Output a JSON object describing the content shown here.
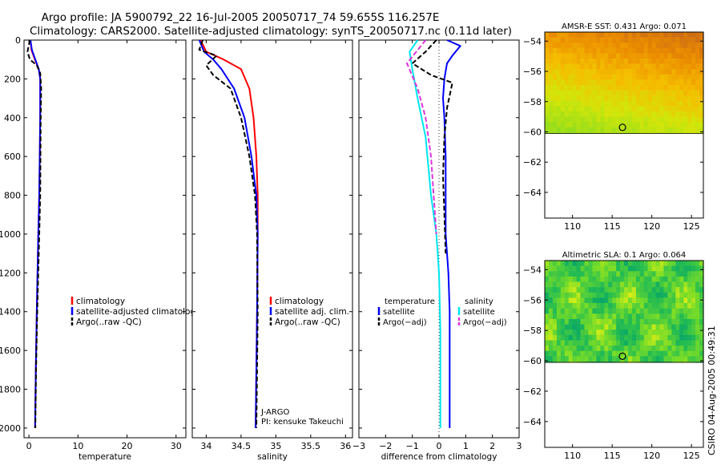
{
  "title": {
    "line1": "Argo profile: JA 5900792_22 16-Jul-2005 20050717_74 59.655S 116.257E",
    "line2": "Climatology: CARS2000. Satellite-adjusted climatology: synTS_20050717.nc (0.11d later)"
  },
  "side_credit": "CSIRO 04-Aug-2005 00:49:31",
  "colors": {
    "climatology": "#ff0000",
    "satellite": "#0000ff",
    "argo": "#000000",
    "salinity_satellite": "#00e5ee",
    "salinity_argo": "#dd33dd"
  },
  "chart_data": [
    {
      "type": "line",
      "name": "temperature-panel",
      "xlabel": "temperature",
      "ylabel": "",
      "xlim": [
        -1,
        32
      ],
      "ylim": [
        0,
        2050
      ],
      "y_reversed": true,
      "xticks": [
        0,
        10,
        20,
        30
      ],
      "xtick_labels": [
        "0",
        "10",
        "20",
        "30"
      ],
      "yticks": [
        0,
        200,
        400,
        600,
        800,
        1000,
        1200,
        1400,
        1600,
        1800,
        2000
      ],
      "ytick_labels": [
        "0",
        "200",
        "400",
        "600",
        "800",
        "1000",
        "1200",
        "1400",
        "1600",
        "1800",
        "2000"
      ],
      "legend": [
        "climatology",
        "satellite-adjusted climatology",
        "Argo(..raw -QC)"
      ],
      "legend_position": "middle-right",
      "series": [
        {
          "name": "climatology",
          "color": "#ff0000",
          "style": "solid",
          "x": [
            0.3,
            0.5,
            1.2,
            2.0,
            2.3,
            2.3,
            2.1,
            1.9,
            1.6,
            1.4,
            1.25
          ],
          "y": [
            0,
            50,
            100,
            150,
            200,
            400,
            800,
            1000,
            1400,
            1700,
            2000
          ]
        },
        {
          "name": "satellite",
          "color": "#0000ff",
          "style": "solid",
          "x": [
            0.3,
            0.6,
            1.3,
            2.0,
            2.3,
            2.3,
            2.1,
            1.9,
            1.6,
            1.4,
            1.25
          ],
          "y": [
            0,
            50,
            100,
            150,
            200,
            400,
            800,
            1000,
            1400,
            1700,
            2000
          ]
        },
        {
          "name": "argo",
          "color": "#000000",
          "style": "dash",
          "x": [
            0.2,
            -0.3,
            0.2,
            1.6,
            2.3,
            2.5,
            2.4,
            2.3,
            2.1,
            1.7,
            1.45,
            1.3
          ],
          "y": [
            0,
            60,
            100,
            130,
            170,
            250,
            400,
            800,
            1000,
            1400,
            1700,
            2000
          ]
        }
      ]
    },
    {
      "type": "line",
      "name": "salinity-panel",
      "xlabel": "salinity",
      "xlim": [
        33.8,
        36.1
      ],
      "ylim": [
        0,
        2050
      ],
      "y_reversed": true,
      "xticks": [
        34,
        34.5,
        35,
        35.5,
        36
      ],
      "xtick_labels": [
        "34",
        "34.5",
        "35",
        "35.5",
        "36"
      ],
      "legend": [
        "climatology",
        "satellite adj. clim.",
        "Argo(..raw -QC)"
      ],
      "legend_position": "middle-right",
      "annotation": [
        "J-ARGO",
        "PI: kensuke Takeuchi"
      ],
      "series": [
        {
          "name": "climatology",
          "color": "#ff0000",
          "style": "solid",
          "x": [
            33.92,
            34.0,
            34.25,
            34.5,
            34.62,
            34.68,
            34.72,
            34.74,
            34.74,
            34.73,
            34.72,
            34.71
          ],
          "y": [
            0,
            60,
            100,
            150,
            250,
            400,
            600,
            800,
            1000,
            1400,
            1700,
            2000
          ]
        },
        {
          "name": "satellite",
          "color": "#0000ff",
          "style": "solid",
          "x": [
            33.9,
            33.97,
            34.1,
            34.22,
            34.4,
            34.55,
            34.65,
            34.72,
            34.74,
            34.73,
            34.72,
            34.71
          ],
          "y": [
            0,
            60,
            100,
            150,
            250,
            400,
            600,
            800,
            1000,
            1400,
            1700,
            2000
          ]
        },
        {
          "name": "argo",
          "color": "#000000",
          "style": "dash",
          "x": [
            33.95,
            33.9,
            34.15,
            34.0,
            34.1,
            34.35,
            34.5,
            34.62,
            34.7,
            34.73,
            34.74,
            34.73,
            34.72
          ],
          "y": [
            0,
            50,
            80,
            130,
            180,
            250,
            400,
            600,
            800,
            1000,
            1400,
            1700,
            2000
          ]
        }
      ]
    },
    {
      "type": "line",
      "name": "difference-panel",
      "xlabel": "difference from climatology",
      "xlim": [
        -3,
        3
      ],
      "ylim": [
        0,
        2050
      ],
      "y_reversed": true,
      "xticks": [
        -3,
        -2,
        -1,
        0,
        1,
        2,
        3
      ],
      "xtick_labels": [
        "−3",
        "−2",
        "−1",
        "0",
        "1",
        "2",
        "3"
      ],
      "legend_temperature": {
        "header": "temperature",
        "items": [
          "satellite",
          "Argo(−adj)"
        ]
      },
      "legend_salinity": {
        "header": "salinity",
        "items": [
          "satellite",
          "Argo(−adj)"
        ]
      },
      "legend_position": "middle",
      "series": [
        {
          "name": "temperature satellite",
          "color": "#0000ff",
          "style": "solid",
          "x": [
            0.3,
            0.8,
            0.5,
            0.3,
            0.2,
            0.15,
            0.2,
            0.25,
            0.25,
            0.35,
            0.4,
            0.4,
            0.4
          ],
          "y": [
            0,
            30,
            80,
            120,
            200,
            300,
            400,
            600,
            1000,
            1200,
            1400,
            1700,
            2000
          ]
        },
        {
          "name": "temperature Argo(-adj)",
          "color": "#000000",
          "style": "dash",
          "x": [
            -0.1,
            -0.5,
            -1.0,
            -0.3,
            0.5,
            0.3,
            0.2,
            0.15,
            0.2,
            0.25
          ],
          "y": [
            0,
            60,
            120,
            180,
            220,
            350,
            500,
            700,
            900,
            1100
          ]
        },
        {
          "name": "salinity satellite",
          "color": "#00e5ee",
          "style": "solid",
          "x": [
            -0.8,
            -1.1,
            -1.0,
            -0.8,
            -0.5,
            -0.3,
            -0.1,
            0.0,
            0.05,
            0.05,
            0.05
          ],
          "y": [
            0,
            60,
            150,
            300,
            500,
            800,
            1000,
            1200,
            1500,
            1800,
            2000
          ]
        },
        {
          "name": "salinity Argo(-adj)",
          "color": "#dd33dd",
          "style": "dash",
          "x": [
            -0.5,
            -1.2,
            -0.8,
            -0.5,
            -0.3,
            -0.2,
            -0.1
          ],
          "y": [
            0,
            120,
            250,
            400,
            600,
            800,
            1000
          ]
        }
      ]
    },
    {
      "type": "heatmap",
      "name": "sst-map",
      "title": "AMSR-E SST: 0.431 Argo: 0.071",
      "xlim": [
        106.5,
        126.5
      ],
      "ylim": [
        -65.7,
        -53.4
      ],
      "xticks": [
        110,
        115,
        120,
        125
      ],
      "xtick_labels": [
        "110",
        "115",
        "120",
        "125"
      ],
      "yticks": [
        -54,
        -56,
        -58,
        -60,
        -62,
        -64
      ],
      "ytick_labels": [
        "−54",
        "−56",
        "−58",
        "−60",
        "−62",
        "−64"
      ],
      "data_lat_range": [
        -60.1,
        -53.4
      ],
      "marker": {
        "lon": 116.3,
        "lat": -59.7
      }
    },
    {
      "type": "heatmap",
      "name": "sla-map",
      "title": "Altimetric SLA: 0.1 Argo: 0.064",
      "xlim": [
        106.5,
        126.5
      ],
      "ylim": [
        -65.7,
        -53.4
      ],
      "xticks": [
        110,
        115,
        120,
        125
      ],
      "xtick_labels": [
        "110",
        "115",
        "120",
        "125"
      ],
      "yticks": [
        -54,
        -56,
        -58,
        -60,
        -62,
        -64
      ],
      "ytick_labels": [
        "−54",
        "−56",
        "−58",
        "−60",
        "−62",
        "−64"
      ],
      "data_lat_range": [
        -60.1,
        -53.4
      ],
      "marker": {
        "lon": 116.3,
        "lat": -59.7
      }
    }
  ]
}
